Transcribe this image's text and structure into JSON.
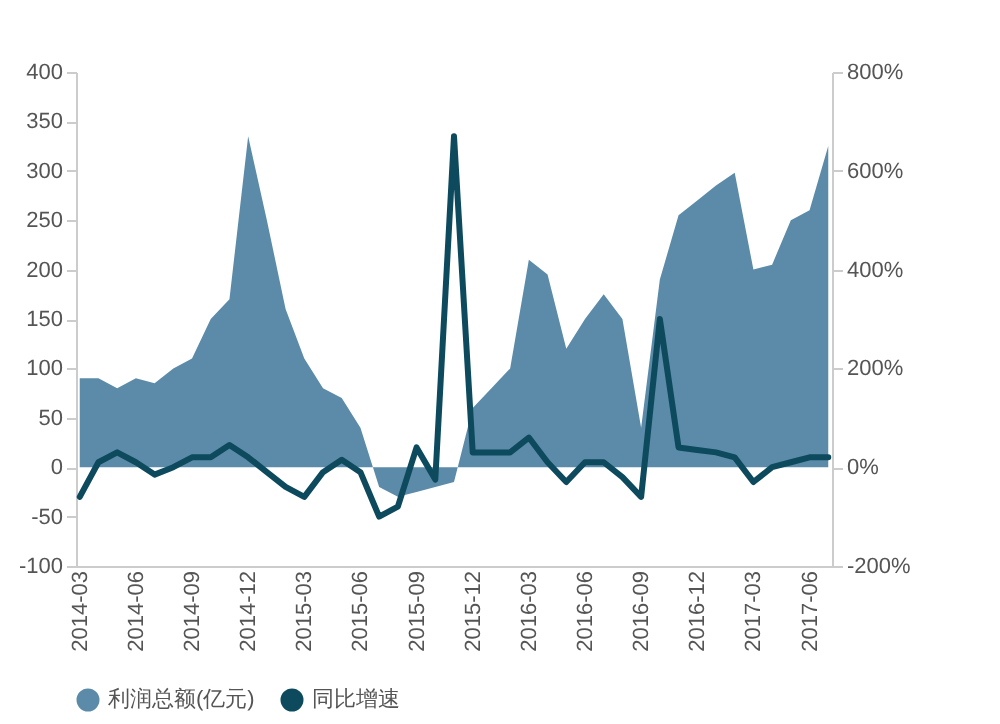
{
  "chart_data": {
    "type": "area",
    "categories": [
      "2014-03",
      null,
      null,
      "2014-06",
      null,
      null,
      "2014-09",
      null,
      null,
      "2014-12",
      null,
      null,
      "2015-03",
      null,
      null,
      "2015-06",
      null,
      null,
      "2015-09",
      null,
      null,
      "2015-12",
      null,
      null,
      "2016-03",
      null,
      null,
      "2016-06",
      null,
      null,
      "2016-09",
      null,
      null,
      "2016-12",
      null,
      null,
      "2017-03",
      null,
      null,
      "2017-06",
      null
    ],
    "series": [
      {
        "name": "利润总额(亿元)",
        "color": "#5b8ba8",
        "values": [
          90,
          90,
          80,
          90,
          85,
          100,
          110,
          150,
          170,
          335,
          250,
          160,
          110,
          80,
          70,
          40,
          -20,
          -30,
          -25,
          -20,
          -15,
          60,
          80,
          100,
          210,
          195,
          120,
          150,
          175,
          150,
          40,
          190,
          255,
          270,
          285,
          298,
          200,
          205,
          250,
          260,
          325
        ]
      },
      {
        "name": "同比增速",
        "type": "line",
        "axis": "y2",
        "color": "#0d4a5e",
        "values": [
          -60,
          10,
          30,
          10,
          -15,
          0,
          20,
          20,
          45,
          20,
          -10,
          -40,
          -60,
          -10,
          15,
          -10,
          -100,
          -80,
          40,
          -25,
          670,
          30,
          30,
          30,
          60,
          10,
          -30,
          10,
          10,
          -20,
          -60,
          300,
          40,
          35,
          30,
          20,
          -30,
          0,
          10,
          20,
          20
        ]
      }
    ],
    "ylim": [
      -100,
      400
    ],
    "yticks": [
      -100,
      -50,
      0,
      50,
      100,
      150,
      200,
      250,
      300,
      350,
      400
    ],
    "y2lim": [
      -200,
      800
    ],
    "y2ticks": [
      {
        "value": -200,
        "label": "-200%"
      },
      {
        "value": 0,
        "label": "0%"
      },
      {
        "value": 200,
        "label": "200%"
      },
      {
        "value": 400,
        "label": "400%"
      },
      {
        "value": 600,
        "label": "600%"
      },
      {
        "value": 800,
        "label": "800%"
      }
    ],
    "legend": "bottom",
    "line_style": "solid",
    "marker": "none",
    "grid": false
  }
}
